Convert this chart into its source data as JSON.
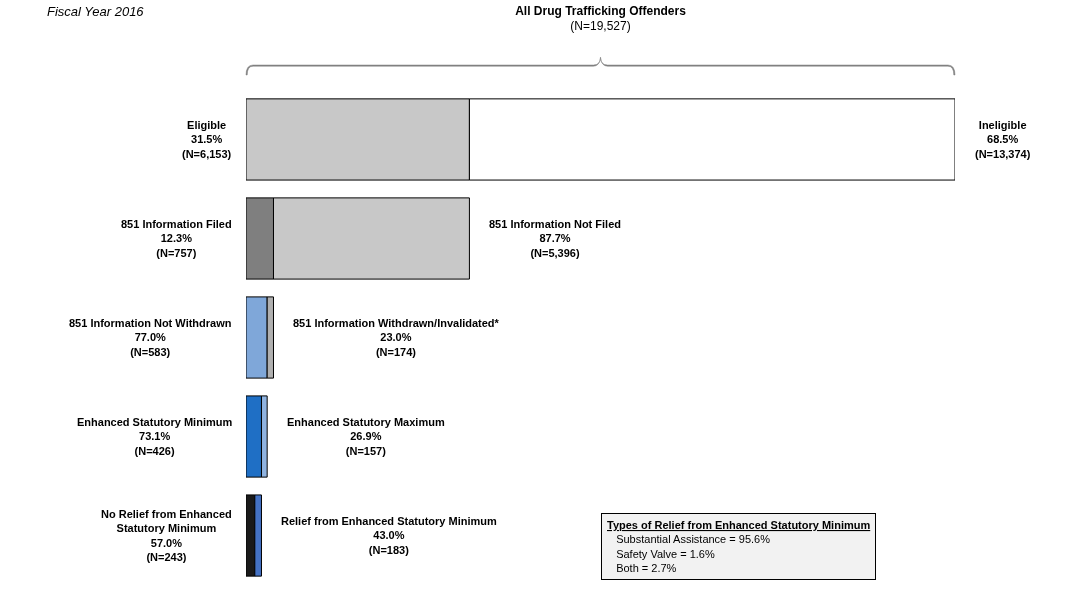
{
  "chart_data": {
    "type": "bar",
    "orientation": "horizontal",
    "stacked": true,
    "title": "All Drug Trafficking Offenders",
    "subtitle": "(N=19,527)",
    "categories": [
      null,
      null,
      null,
      null,
      null
    ],
    "xlim": [
      0,
      19527
    ],
    "tick_labels": false,
    "legend": false,
    "series": [
      {
        "colors": [
          "#c8c8c8",
          "#7f7f7f",
          "#7fa7d9",
          "#1f6fc5",
          "#1a1a1a"
        ],
        "values": [
          6153,
          757,
          583,
          426,
          243
        ],
        "value_labels": [
          "Eligible\n31.5%\n(N=6,153)",
          "851 Information Filed\n12.3%\n(N=757)",
          "851 Information Not Withdrawn\n77.0%\n(N=583)",
          "Enhanced Statutory Minimum\n73.1%\n(N=426)",
          "No Relief from Enhanced\nStatutory Minimum\n57.0%\n(N=243)"
        ]
      },
      {
        "colors": [
          "#ffffff",
          "#c8c8c8",
          "#b0b0b0",
          "#8fb3e0",
          "#4472c4"
        ],
        "values": [
          13374,
          5396,
          174,
          157,
          183
        ],
        "value_labels": [
          "Ineligible\n68.5%\n(N=13,374)",
          "851 Information Not Filed\n87.7%\n(N=5,396)",
          "851 Information Withdrawn/Invalidated*\n23.0%\n(N=174)",
          "Enhanced Statutory Maximum\n26.9%\n(N=157)",
          "Relief from Enhanced Statutory Minimum\n43.0%\n(N=183)"
        ]
      }
    ],
    "annotations": [
      "Fiscal Year 2016",
      "Types of Relief from Enhanced Statutory Minimum\nSubstantial Assistance = 95.6%\nSafety Valve = 1.6%\nBoth = 2.7%"
    ]
  }
}
